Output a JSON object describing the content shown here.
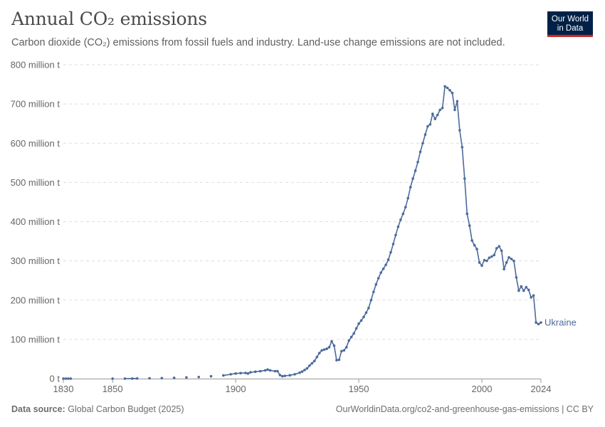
{
  "header": {
    "title": "Annual CO₂ emissions",
    "subtitle": "Carbon dioxide (CO₂) emissions from fossil fuels and industry. Land-use change emissions are not included."
  },
  "logo": {
    "line1": "Our World",
    "line2": "in Data"
  },
  "footer": {
    "source_label": "Data source:",
    "source_value": "Global Carbon Budget (2025)",
    "url_license": "OurWorldinData.org/co2-and-greenhouse-gas-emissions | CC BY"
  },
  "colors": {
    "series": "#4c6a9c",
    "grid": "#dddddd",
    "axis": "#666666",
    "logo_bg": "#002147",
    "logo_accent": "#ce261e"
  },
  "chart_data": {
    "type": "line",
    "title": "Annual CO₂ emissions",
    "xlabel": "",
    "ylabel": "",
    "xlim": [
      1830,
      2024
    ],
    "ylim": [
      0,
      800
    ],
    "y_unit": "million t",
    "x_ticks": [
      "1830",
      "1850",
      "1900",
      "1950",
      "2000",
      "2024"
    ],
    "y_ticks": [
      "0 t",
      "100 million t",
      "200 million t",
      "300 million t",
      "400 million t",
      "500 million t",
      "600 million t",
      "700 million t",
      "800 million t"
    ],
    "grid": true,
    "series": [
      {
        "name": "Ukraine",
        "points": [
          [
            1830,
            0
          ],
          [
            1831,
            0
          ],
          [
            1832,
            0
          ],
          [
            1833,
            0
          ],
          [
            1850,
            0
          ],
          [
            1855,
            0
          ],
          [
            1858,
            0.2
          ],
          [
            1860,
            0.4
          ],
          [
            1865,
            0.8
          ],
          [
            1870,
            1.3
          ],
          [
            1875,
            2
          ],
          [
            1880,
            3
          ],
          [
            1885,
            4
          ],
          [
            1890,
            6
          ],
          [
            1895,
            8
          ],
          [
            1898,
            11
          ],
          [
            1900,
            13
          ],
          [
            1902,
            14
          ],
          [
            1904,
            14.5
          ],
          [
            1905,
            13
          ],
          [
            1906,
            16
          ],
          [
            1908,
            17.5
          ],
          [
            1910,
            19
          ],
          [
            1912,
            21
          ],
          [
            1913,
            23
          ],
          [
            1914,
            21
          ],
          [
            1916,
            19
          ],
          [
            1917,
            19
          ],
          [
            1918,
            9
          ],
          [
            1919,
            6
          ],
          [
            1920,
            7
          ],
          [
            1922,
            8.5
          ],
          [
            1924,
            11
          ],
          [
            1926,
            15
          ],
          [
            1927,
            18
          ],
          [
            1928,
            22
          ],
          [
            1929,
            26
          ],
          [
            1930,
            33
          ],
          [
            1931,
            39
          ],
          [
            1932,
            45
          ],
          [
            1933,
            55
          ],
          [
            1934,
            65
          ],
          [
            1935,
            72
          ],
          [
            1936,
            74
          ],
          [
            1937,
            76
          ],
          [
            1938,
            80
          ],
          [
            1939,
            95
          ],
          [
            1940,
            84
          ],
          [
            1941,
            47
          ],
          [
            1942,
            48
          ],
          [
            1943,
            70
          ],
          [
            1944,
            72
          ],
          [
            1945,
            80
          ],
          [
            1946,
            97
          ],
          [
            1947,
            106
          ],
          [
            1948,
            115
          ],
          [
            1949,
            128
          ],
          [
            1950,
            140
          ],
          [
            1951,
            148
          ],
          [
            1952,
            157
          ],
          [
            1953,
            168
          ],
          [
            1954,
            180
          ],
          [
            1955,
            200
          ],
          [
            1956,
            221
          ],
          [
            1957,
            240
          ],
          [
            1958,
            256
          ],
          [
            1959,
            270
          ],
          [
            1960,
            280
          ],
          [
            1961,
            290
          ],
          [
            1962,
            303
          ],
          [
            1963,
            322
          ],
          [
            1964,
            343
          ],
          [
            1965,
            366
          ],
          [
            1966,
            387
          ],
          [
            1967,
            405
          ],
          [
            1968,
            420
          ],
          [
            1969,
            437
          ],
          [
            1970,
            460
          ],
          [
            1971,
            488
          ],
          [
            1972,
            510
          ],
          [
            1973,
            530
          ],
          [
            1974,
            552
          ],
          [
            1975,
            578
          ],
          [
            1976,
            600
          ],
          [
            1977,
            622
          ],
          [
            1978,
            643
          ],
          [
            1979,
            648
          ],
          [
            1980,
            675
          ],
          [
            1981,
            662
          ],
          [
            1982,
            672
          ],
          [
            1983,
            685
          ],
          [
            1984,
            690
          ],
          [
            1985,
            745
          ],
          [
            1986,
            741
          ],
          [
            1987,
            735
          ],
          [
            1988,
            728
          ],
          [
            1989,
            685
          ],
          [
            1990,
            707
          ],
          [
            1991,
            633
          ],
          [
            1992,
            590
          ],
          [
            1993,
            510
          ],
          [
            1994,
            420
          ],
          [
            1995,
            390
          ],
          [
            1996,
            352
          ],
          [
            1997,
            340
          ],
          [
            1998,
            330
          ],
          [
            1999,
            296
          ],
          [
            2000,
            288
          ],
          [
            2001,
            302
          ],
          [
            2002,
            300
          ],
          [
            2003,
            308
          ],
          [
            2004,
            311
          ],
          [
            2005,
            315
          ],
          [
            2006,
            332
          ],
          [
            2007,
            337
          ],
          [
            2008,
            326
          ],
          [
            2009,
            279
          ],
          [
            2010,
            296
          ],
          [
            2011,
            309
          ],
          [
            2012,
            305
          ],
          [
            2013,
            300
          ],
          [
            2014,
            258
          ],
          [
            2015,
            224
          ],
          [
            2016,
            235
          ],
          [
            2017,
            224
          ],
          [
            2018,
            233
          ],
          [
            2019,
            226
          ],
          [
            2020,
            207
          ],
          [
            2021,
            212
          ],
          [
            2022,
            143
          ],
          [
            2023,
            139
          ],
          [
            2024,
            143
          ]
        ]
      }
    ]
  }
}
